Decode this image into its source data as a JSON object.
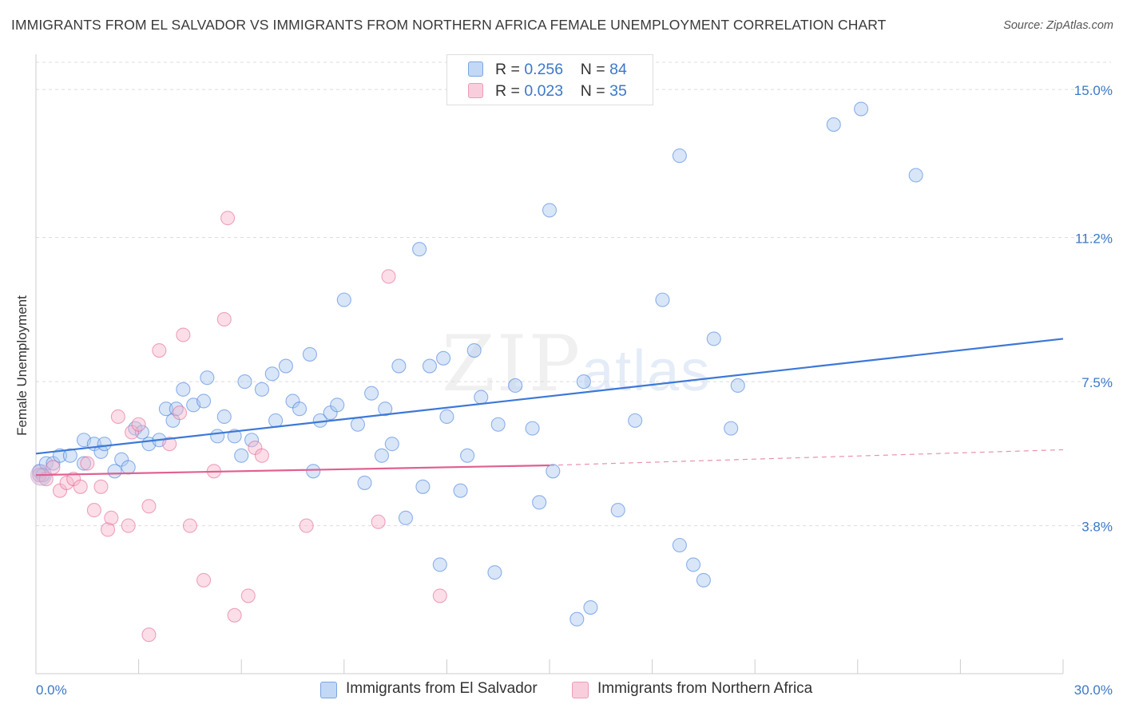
{
  "title": "IMMIGRANTS FROM EL SALVADOR VS IMMIGRANTS FROM NORTHERN AFRICA FEMALE UNEMPLOYMENT CORRELATION CHART",
  "source": "Source: ZipAtlas.com",
  "watermark": {
    "zip": "ZIP",
    "atlas": "atlas"
  },
  "stats_legend": [
    {
      "r_label": "R = ",
      "r_value": "0.256",
      "n_label": "N = ",
      "n_value": "84",
      "color": "#a9c8f0"
    },
    {
      "r_label": "R = ",
      "r_value": "0.023",
      "n_label": "N = ",
      "n_value": "35",
      "color": "#f7b6cb"
    }
  ],
  "chart_data": {
    "type": "scatter",
    "ylabel": "Female Unemployment",
    "xlabel": "",
    "xlim": [
      0,
      30
    ],
    "ylim": [
      0,
      15.7
    ],
    "x_tick_labels": [
      "0.0%",
      "30.0%"
    ],
    "y_ticks": [
      3.8,
      7.5,
      11.2,
      15.0
    ],
    "y_tick_labels": [
      "3.8%",
      "7.5%",
      "11.2%",
      "15.0%"
    ],
    "grid": true,
    "legend_position": "bottom-center",
    "series": [
      {
        "name": "Immigrants from El Salvador",
        "color": "#3c78d8",
        "fill": "#a9c8f0",
        "trend": {
          "x": [
            0,
            30
          ],
          "y": [
            5.65,
            8.6
          ]
        },
        "points": [
          [
            0.1,
            5.2
          ],
          [
            0.3,
            5.4
          ],
          [
            0.5,
            5.4
          ],
          [
            0.7,
            5.6
          ],
          [
            1.0,
            5.6
          ],
          [
            1.4,
            5.4
          ],
          [
            1.4,
            6.0
          ],
          [
            1.7,
            5.9
          ],
          [
            1.9,
            5.7
          ],
          [
            2.0,
            5.9
          ],
          [
            2.3,
            5.2
          ],
          [
            2.5,
            5.5
          ],
          [
            2.7,
            5.3
          ],
          [
            2.9,
            6.3
          ],
          [
            3.1,
            6.2
          ],
          [
            3.3,
            5.9
          ],
          [
            3.6,
            6.0
          ],
          [
            3.8,
            6.8
          ],
          [
            4.0,
            6.5
          ],
          [
            4.1,
            6.8
          ],
          [
            4.3,
            7.3
          ],
          [
            4.6,
            6.9
          ],
          [
            4.9,
            7.0
          ],
          [
            5.0,
            7.6
          ],
          [
            5.3,
            6.1
          ],
          [
            5.5,
            6.6
          ],
          [
            5.8,
            6.1
          ],
          [
            6.0,
            5.6
          ],
          [
            6.1,
            7.5
          ],
          [
            6.3,
            6.0
          ],
          [
            6.6,
            7.3
          ],
          [
            6.9,
            7.7
          ],
          [
            7.0,
            6.5
          ],
          [
            7.3,
            7.9
          ],
          [
            7.5,
            7.0
          ],
          [
            7.7,
            6.8
          ],
          [
            8.0,
            8.2
          ],
          [
            8.1,
            5.2
          ],
          [
            8.3,
            6.5
          ],
          [
            8.6,
            6.7
          ],
          [
            8.8,
            6.9
          ],
          [
            9.0,
            9.6
          ],
          [
            9.4,
            6.4
          ],
          [
            9.6,
            4.9
          ],
          [
            9.8,
            7.2
          ],
          [
            10.1,
            5.6
          ],
          [
            10.2,
            6.8
          ],
          [
            10.4,
            5.9
          ],
          [
            10.6,
            7.9
          ],
          [
            10.8,
            4.0
          ],
          [
            11.2,
            10.9
          ],
          [
            11.3,
            4.8
          ],
          [
            11.5,
            7.9
          ],
          [
            11.8,
            2.8
          ],
          [
            11.9,
            8.1
          ],
          [
            12.0,
            6.6
          ],
          [
            12.4,
            4.7
          ],
          [
            12.6,
            5.6
          ],
          [
            12.8,
            8.3
          ],
          [
            13.0,
            7.1
          ],
          [
            13.4,
            2.6
          ],
          [
            13.5,
            6.4
          ],
          [
            14.0,
            7.4
          ],
          [
            14.5,
            6.3
          ],
          [
            14.7,
            4.4
          ],
          [
            15.0,
            11.9
          ],
          [
            15.1,
            5.2
          ],
          [
            15.8,
            1.4
          ],
          [
            16.0,
            7.5
          ],
          [
            16.2,
            1.7
          ],
          [
            17.0,
            4.2
          ],
          [
            17.5,
            6.5
          ],
          [
            18.3,
            9.6
          ],
          [
            18.8,
            13.3
          ],
          [
            18.8,
            3.3
          ],
          [
            19.2,
            2.8
          ],
          [
            19.5,
            2.4
          ],
          [
            19.8,
            8.6
          ],
          [
            20.3,
            6.3
          ],
          [
            20.5,
            7.4
          ],
          [
            23.3,
            14.1
          ],
          [
            24.1,
            14.5
          ],
          [
            25.7,
            12.8
          ],
          [
            0.2,
            5.1
          ]
        ]
      },
      {
        "name": "Immigrants from Northern Africa",
        "color": "#e06090",
        "fill": "#f7b6cb",
        "trend": {
          "x": [
            0,
            15
          ],
          "y": [
            5.1,
            5.35
          ],
          "dashed_to": [
            30,
            5.75
          ]
        },
        "points": [
          [
            0.1,
            5.1
          ],
          [
            0.3,
            5.0
          ],
          [
            0.5,
            5.3
          ],
          [
            0.7,
            4.7
          ],
          [
            0.9,
            4.9
          ],
          [
            1.1,
            5.0
          ],
          [
            1.3,
            4.8
          ],
          [
            1.5,
            5.4
          ],
          [
            1.7,
            4.2
          ],
          [
            1.9,
            4.8
          ],
          [
            2.1,
            3.7
          ],
          [
            2.2,
            4.0
          ],
          [
            2.4,
            6.6
          ],
          [
            2.7,
            3.8
          ],
          [
            2.8,
            6.2
          ],
          [
            3.0,
            6.4
          ],
          [
            3.3,
            4.3
          ],
          [
            3.3,
            1.0
          ],
          [
            3.6,
            8.3
          ],
          [
            3.9,
            5.9
          ],
          [
            4.2,
            6.7
          ],
          [
            4.3,
            8.7
          ],
          [
            4.5,
            3.8
          ],
          [
            4.9,
            2.4
          ],
          [
            5.2,
            5.2
          ],
          [
            5.5,
            9.1
          ],
          [
            5.6,
            11.7
          ],
          [
            5.8,
            1.5
          ],
          [
            6.2,
            2.0
          ],
          [
            6.4,
            5.8
          ],
          [
            6.6,
            5.6
          ],
          [
            7.9,
            3.8
          ],
          [
            10.0,
            3.9
          ],
          [
            10.3,
            10.2
          ],
          [
            11.8,
            2.0
          ]
        ]
      }
    ]
  }
}
